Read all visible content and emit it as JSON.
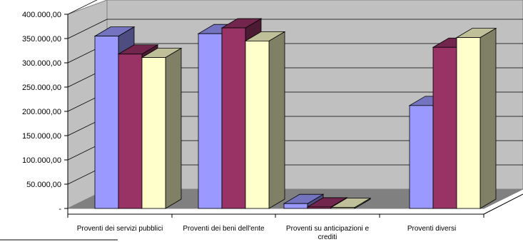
{
  "chart_data": {
    "type": "bar",
    "title": "",
    "xlabel": "",
    "ylabel": "",
    "ylim": [
      0,
      400000
    ],
    "ytick_labels": [
      "-",
      "50.000,00",
      "100.000,00",
      "150.000,00",
      "200.000,00",
      "250.000,00",
      "300.000,00",
      "350.000,00",
      "400.000,00"
    ],
    "categories": [
      [
        "Proventi dei servizi pubblici"
      ],
      [
        "Proventi dei beni dell'ente"
      ],
      [
        "Proventi su anticipazioni e",
        "crediti"
      ],
      [
        "Proventi diversi"
      ]
    ],
    "series": [
      {
        "values": [
          355000,
          360000,
          10000,
          212000
        ],
        "color": "#9999ff"
      },
      {
        "values": [
          318000,
          372000,
          3000,
          332000
        ],
        "color": "#993366"
      },
      {
        "values": [
          311000,
          345000,
          2000,
          352000
        ],
        "color": "#ffffcc"
      }
    ],
    "grid": true,
    "legend": "none",
    "style": "3d-clustered"
  }
}
